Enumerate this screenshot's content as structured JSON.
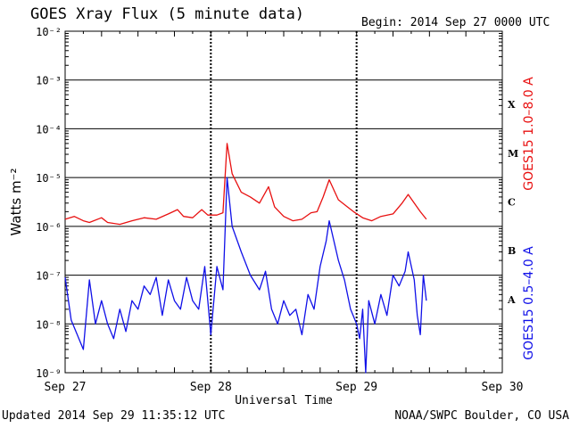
{
  "title": "GOES Xray Flux (5 minute data)",
  "begin": "Begin:  2014 Sep 27 0000 UTC",
  "updated": "Updated 2014 Sep 29 11:35:12 UTC",
  "credit": "NOAA/SWPC Boulder, CO USA",
  "colors": {
    "long": "#e81010",
    "short": "#1010e8",
    "axis": "#000000"
  },
  "chart_data": {
    "type": "line",
    "title": "GOES Xray Flux (5 minute data)",
    "xlabel": "Universal Time",
    "ylabel": "Watts m⁻²",
    "yscale": "log",
    "ylim": [
      1e-09,
      0.01
    ],
    "xlim": [
      "2014-09-27T00:00",
      "2014-09-30T00:00"
    ],
    "x_ticks": [
      {
        "label": "Sep 27",
        "t": "2014-09-27T00:00"
      },
      {
        "label": "Sep 28",
        "t": "2014-09-28T00:00"
      },
      {
        "label": "Sep 29",
        "t": "2014-09-29T00:00"
      },
      {
        "label": "Sep 30",
        "t": "2014-09-30T00:00"
      }
    ],
    "y_ticks": [
      {
        "label": "10⁻⁹",
        "v": 1e-09
      },
      {
        "label": "10⁻⁸",
        "v": 1e-08
      },
      {
        "label": "10⁻⁷",
        "v": 1e-07
      },
      {
        "label": "10⁻⁶",
        "v": 1e-06
      },
      {
        "label": "10⁻⁵",
        "v": 1e-05
      },
      {
        "label": "10⁻⁴",
        "v": 0.0001
      },
      {
        "label": "10⁻³",
        "v": 0.001
      },
      {
        "label": "10⁻²",
        "v": 0.01
      }
    ],
    "flare_classes": [
      {
        "label": "A",
        "v": 1e-08
      },
      {
        "label": "B",
        "v": 1e-07
      },
      {
        "label": "C",
        "v": 1e-06
      },
      {
        "label": "M",
        "v": 1e-05
      },
      {
        "label": "X",
        "v": 0.0001
      }
    ],
    "grid": true,
    "series": [
      {
        "name": "GOES15 1.0–8.0 A",
        "color": "#e81010",
        "points": [
          [
            "2014-09-27T00:00",
            1.4e-06
          ],
          [
            "2014-09-27T01:30",
            1.6e-06
          ],
          [
            "2014-09-27T03:00",
            1.3e-06
          ],
          [
            "2014-09-27T04:00",
            1.2e-06
          ],
          [
            "2014-09-27T06:00",
            1.5e-06
          ],
          [
            "2014-09-27T07:00",
            1.2e-06
          ],
          [
            "2014-09-27T09:00",
            1.1e-06
          ],
          [
            "2014-09-27T11:00",
            1.3e-06
          ],
          [
            "2014-09-27T13:00",
            1.5e-06
          ],
          [
            "2014-09-27T15:00",
            1.4e-06
          ],
          [
            "2014-09-27T17:00",
            1.8e-06
          ],
          [
            "2014-09-27T18:30",
            2.2e-06
          ],
          [
            "2014-09-27T19:30",
            1.6e-06
          ],
          [
            "2014-09-27T21:00",
            1.5e-06
          ],
          [
            "2014-09-27T22:30",
            2.2e-06
          ],
          [
            "2014-09-27T23:30",
            1.7e-06
          ],
          [
            "2014-09-28T01:00",
            1.7e-06
          ],
          [
            "2014-09-28T02:00",
            1.9e-06
          ],
          [
            "2014-09-28T02:40",
            5e-05
          ],
          [
            "2014-09-28T03:30",
            1.2e-05
          ],
          [
            "2014-09-28T05:00",
            5e-06
          ],
          [
            "2014-09-28T06:30",
            4e-06
          ],
          [
            "2014-09-28T08:00",
            3e-06
          ],
          [
            "2014-09-28T09:30",
            6.5e-06
          ],
          [
            "2014-09-28T10:30",
            2.5e-06
          ],
          [
            "2014-09-28T12:00",
            1.6e-06
          ],
          [
            "2014-09-28T13:30",
            1.3e-06
          ],
          [
            "2014-09-28T15:00",
            1.4e-06
          ],
          [
            "2014-09-28T16:30",
            1.9e-06
          ],
          [
            "2014-09-28T17:30",
            2e-06
          ],
          [
            "2014-09-28T18:30",
            4e-06
          ],
          [
            "2014-09-28T19:30",
            9e-06
          ],
          [
            "2014-09-28T21:00",
            3.5e-06
          ],
          [
            "2014-09-28T22:30",
            2.5e-06
          ],
          [
            "2014-09-28T23:30",
            2e-06
          ],
          [
            "2014-09-29T01:00",
            1.5e-06
          ],
          [
            "2014-09-29T02:30",
            1.3e-06
          ],
          [
            "2014-09-29T04:00",
            1.6e-06
          ],
          [
            "2014-09-29T06:00",
            1.8e-06
          ],
          [
            "2014-09-29T07:30",
            3e-06
          ],
          [
            "2014-09-29T08:30",
            4.5e-06
          ],
          [
            "2014-09-29T09:30",
            3e-06
          ],
          [
            "2014-09-29T10:30",
            2e-06
          ],
          [
            "2014-09-29T11:30",
            1.4e-06
          ]
        ]
      },
      {
        "name": "GOES15 0.5–4.0 A",
        "color": "#1010e8",
        "points": [
          [
            "2014-09-27T00:00",
            9e-08
          ],
          [
            "2014-09-27T01:00",
            1.2e-08
          ],
          [
            "2014-09-27T02:00",
            6e-09
          ],
          [
            "2014-09-27T03:00",
            3e-09
          ],
          [
            "2014-09-27T04:00",
            8e-08
          ],
          [
            "2014-09-27T05:00",
            1e-08
          ],
          [
            "2014-09-27T06:00",
            3e-08
          ],
          [
            "2014-09-27T07:00",
            1e-08
          ],
          [
            "2014-09-27T08:00",
            5e-09
          ],
          [
            "2014-09-27T09:00",
            2e-08
          ],
          [
            "2014-09-27T10:00",
            7e-09
          ],
          [
            "2014-09-27T11:00",
            3e-08
          ],
          [
            "2014-09-27T12:00",
            2e-08
          ],
          [
            "2014-09-27T13:00",
            6e-08
          ],
          [
            "2014-09-27T14:00",
            4e-08
          ],
          [
            "2014-09-27T15:00",
            9e-08
          ],
          [
            "2014-09-27T16:00",
            1.5e-08
          ],
          [
            "2014-09-27T17:00",
            8e-08
          ],
          [
            "2014-09-27T18:00",
            3e-08
          ],
          [
            "2014-09-27T19:00",
            2e-08
          ],
          [
            "2014-09-27T20:00",
            9e-08
          ],
          [
            "2014-09-27T21:00",
            3e-08
          ],
          [
            "2014-09-27T22:00",
            2e-08
          ],
          [
            "2014-09-27T23:00",
            1.5e-07
          ],
          [
            "2014-09-28T00:00",
            6e-09
          ],
          [
            "2014-09-28T01:00",
            1.5e-07
          ],
          [
            "2014-09-28T02:00",
            5e-08
          ],
          [
            "2014-09-28T02:40",
            1e-05
          ],
          [
            "2014-09-28T03:30",
            1e-06
          ],
          [
            "2014-09-28T05:00",
            3e-07
          ],
          [
            "2014-09-28T06:30",
            1e-07
          ],
          [
            "2014-09-28T08:00",
            5e-08
          ],
          [
            "2014-09-28T09:00",
            1.2e-07
          ],
          [
            "2014-09-28T10:00",
            2e-08
          ],
          [
            "2014-09-28T11:00",
            1e-08
          ],
          [
            "2014-09-28T12:00",
            3e-08
          ],
          [
            "2014-09-28T13:00",
            1.5e-08
          ],
          [
            "2014-09-28T14:00",
            2e-08
          ],
          [
            "2014-09-28T15:00",
            6e-09
          ],
          [
            "2014-09-28T16:00",
            4e-08
          ],
          [
            "2014-09-28T17:00",
            2e-08
          ],
          [
            "2014-09-28T18:00",
            1.5e-07
          ],
          [
            "2014-09-28T19:00",
            5e-07
          ],
          [
            "2014-09-28T19:30",
            1.3e-06
          ],
          [
            "2014-09-28T21:00",
            2e-07
          ],
          [
            "2014-09-28T22:00",
            8e-08
          ],
          [
            "2014-09-28T23:00",
            2e-08
          ],
          [
            "2014-09-29T00:00",
            1e-08
          ],
          [
            "2014-09-29T00:30",
            5e-09
          ],
          [
            "2014-09-29T01:00",
            2e-08
          ],
          [
            "2014-09-29T01:30",
            1e-09
          ],
          [
            "2014-09-29T02:00",
            3e-08
          ],
          [
            "2014-09-29T03:00",
            1e-08
          ],
          [
            "2014-09-29T04:00",
            4e-08
          ],
          [
            "2014-09-29T05:00",
            1.5e-08
          ],
          [
            "2014-09-29T06:00",
            1e-07
          ],
          [
            "2014-09-29T07:00",
            6e-08
          ],
          [
            "2014-09-29T08:00",
            1.2e-07
          ],
          [
            "2014-09-29T08:30",
            3e-07
          ],
          [
            "2014-09-29T09:30",
            8e-08
          ],
          [
            "2014-09-29T10:00",
            1.5e-08
          ],
          [
            "2014-09-29T10:30",
            6e-09
          ],
          [
            "2014-09-29T11:00",
            1e-07
          ],
          [
            "2014-09-29T11:30",
            3e-08
          ]
        ]
      }
    ]
  }
}
